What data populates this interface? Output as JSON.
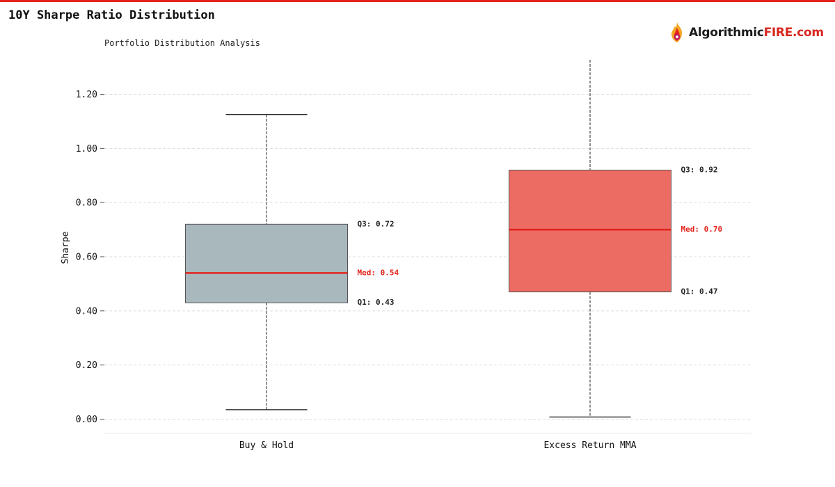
{
  "header": {
    "title": "10Y Sharpe Ratio Distribution",
    "subtitle": "Portfolio Distribution Analysis",
    "brand_name": "Algorithmic",
    "brand_suffix": "FIRE.com"
  },
  "colors": {
    "accent": "#e3231b",
    "box_buy_hold": "#a9b8bd",
    "box_excess": "#ec6b63",
    "median_line": "#e3231b",
    "grid": "#dddddd"
  },
  "chart_data": {
    "type": "box",
    "ylabel": "Sharpe",
    "ylim": [
      -0.05,
      1.32
    ],
    "yticks": [
      0.0,
      0.2,
      0.4,
      0.6,
      0.8,
      1.0,
      1.2
    ],
    "ytick_labels": [
      "0.00",
      "0.20",
      "0.40",
      "0.60",
      "0.80",
      "1.00",
      "1.20"
    ],
    "grid": true,
    "categories": [
      "Buy & Hold",
      "Excess Return MMA"
    ],
    "series": [
      {
        "category": "Buy & Hold",
        "whisker_low": 0.035,
        "q1": 0.43,
        "median": 0.54,
        "q3": 0.72,
        "whisker_high": 1.125,
        "q1_label": "Q1: 0.43",
        "median_label": "Med: 0.54",
        "q3_label": "Q3: 0.72"
      },
      {
        "category": "Excess Return MMA",
        "whisker_low": 0.008,
        "q1": 0.47,
        "median": 0.7,
        "q3": 0.92,
        "whisker_high": 1.33,
        "q1_label": "Q1: 0.47",
        "median_label": "Med: 0.70",
        "q3_label": "Q3: 0.92"
      }
    ]
  }
}
